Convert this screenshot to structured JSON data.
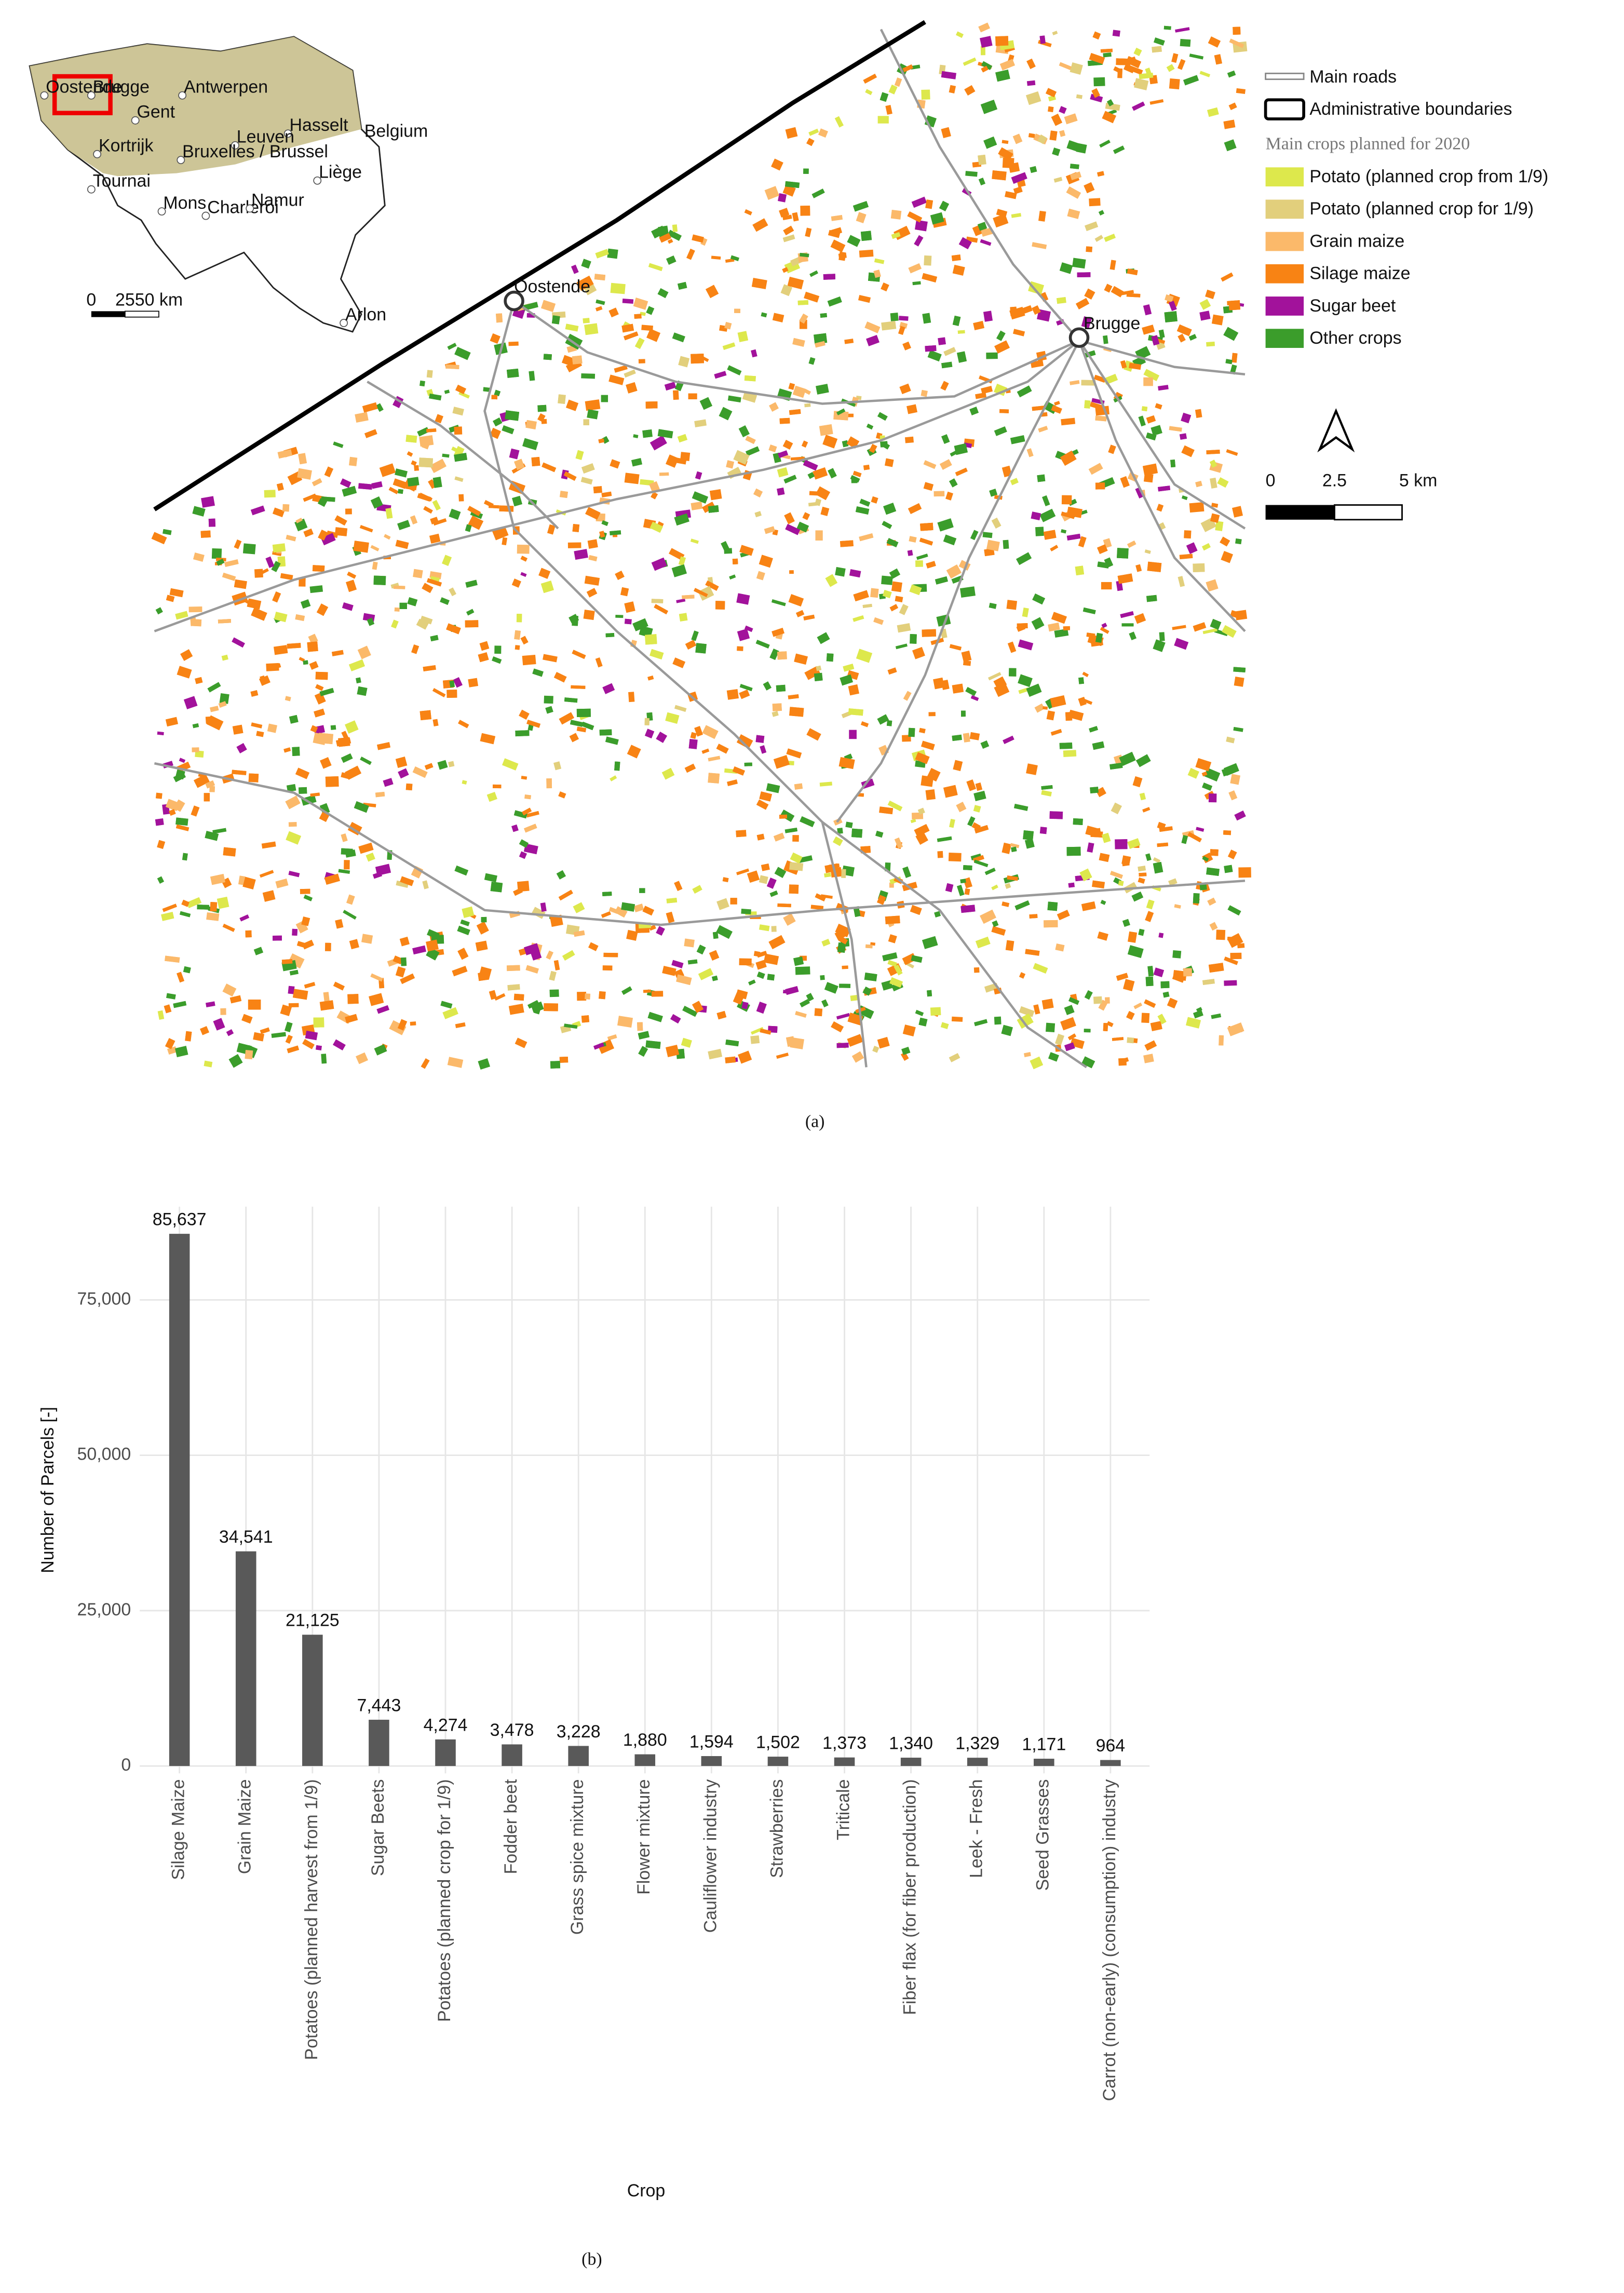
{
  "panel_labels": [
    "(a)",
    "(b)"
  ],
  "map": {
    "cities": [
      "Oostende",
      "Brugge"
    ],
    "inset": {
      "country": "Belgium",
      "cities": [
        "Oostende",
        "Brugge",
        "Gent",
        "Antwerpen",
        "Hasselt",
        "Kortrijk",
        "Leuven",
        "Bruxelles / Brussel",
        "Tournai",
        "Liège",
        "Mons",
        "Charleroi",
        "Namur",
        "Arlon"
      ],
      "scale": [
        "0",
        "25",
        "50 km"
      ]
    },
    "legend": {
      "items": [
        "Main roads",
        "Administrative boundaries"
      ],
      "title": "Main crops planned for 2020",
      "crops": [
        {
          "label": "Potato (planned crop from 1/9)",
          "color": "#dde84c"
        },
        {
          "label": "Potato (planned crop for 1/9)",
          "color": "#e2cf7c"
        },
        {
          "label": "Grain maize",
          "color": "#fbb96a"
        },
        {
          "label": "Silage maize",
          "color": "#f88314"
        },
        {
          "label": "Sugar beet",
          "color": "#a2129b"
        },
        {
          "label": "Other crops",
          "color": "#3b9d2b"
        }
      ]
    },
    "scale": [
      "0",
      "2.5",
      "5 km"
    ]
  },
  "chart_data": {
    "type": "bar",
    "x_label": "Crop",
    "y_label": "Number of Parcels [-]",
    "categories": [
      "Silage Maize",
      "Grain Maize",
      "Potatoes (planned harvest from 1/9)",
      "Sugar Beets",
      "Potatoes (planned crop for 1/9)",
      "Fodder beet",
      "Grass spice mixture",
      "Flower mixture",
      "Cauliflower industry",
      "Strawberries",
      "Triticale",
      "Fiber flax (for fiber production)",
      "Leek - Fresh",
      "Seed Grasses",
      "Carrot (non-early) (consumption) industry"
    ],
    "values": [
      85637,
      34541,
      21125,
      7443,
      4274,
      3478,
      3228,
      1880,
      1594,
      1502,
      1373,
      1340,
      1329,
      1171,
      964
    ],
    "value_labels": [
      "85,637",
      "34,541",
      "21,125",
      "7,443",
      "4,274",
      "3,478",
      "3,228",
      "1,880",
      "1,594",
      "1,502",
      "1,373",
      "1,340",
      "1,329",
      "1,171",
      "964"
    ],
    "color": "#595959",
    "ylim": [
      0,
      90000
    ],
    "yticks": [
      0,
      {
        "value": 25000,
        "label": "25,000"
      },
      {
        "value": 50000,
        "label": "50,000"
      },
      {
        "value": 75000,
        "label": "75,000"
      }
    ],
    "grid": true
  }
}
